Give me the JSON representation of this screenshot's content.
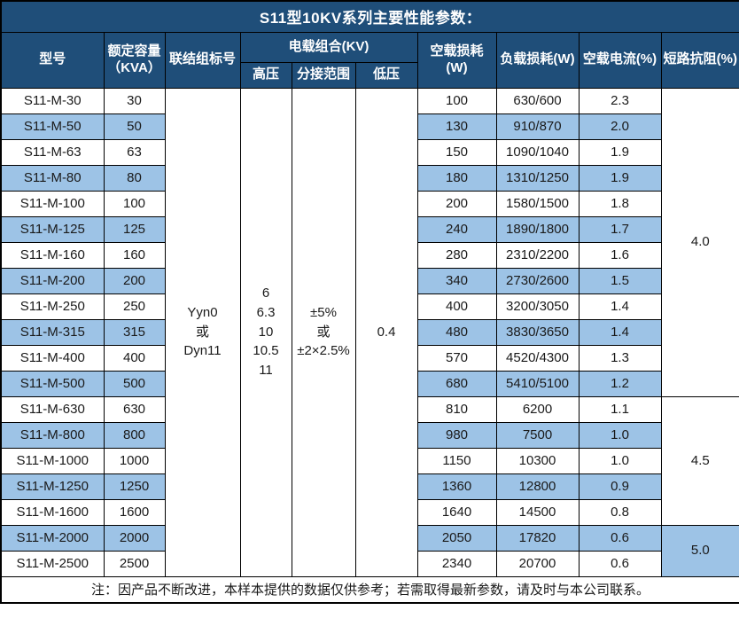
{
  "title": "S11型10KV系列主要性能参数：",
  "colors": {
    "header_bg": "#1F4E79",
    "row_alt": "#9DC3E6",
    "border": "#000000"
  },
  "table": {
    "headers": {
      "model": "型号",
      "capacity": "额定容量\n（KVA）",
      "vector_group": "联结组标号",
      "voltage_combo": "电载组合(KV)",
      "hv": "高压",
      "tap_range": "分接范围",
      "lv": "低压",
      "no_load_loss": "空载损耗(W)",
      "load_loss": "负载损耗(W)",
      "no_load_current": "空载电流(%)",
      "impedance": "短路抗阻(%)"
    },
    "merged": {
      "vector_group": "Yyn0\n或\nDyn11",
      "hv": "6\n6.3\n10\n10.5\n11",
      "tap_range": "±5%\n或\n±2×2.5%",
      "lv": "0.4"
    },
    "impedance_groups": [
      {
        "value": "4.0",
        "rows": 12
      },
      {
        "value": "4.5",
        "rows": 5
      },
      {
        "value": "5.0",
        "rows": 2
      }
    ],
    "rows": [
      {
        "model": "S11-M-30",
        "capacity": "30",
        "no_load_loss": "100",
        "load_loss": "630/600",
        "no_load_current": "2.3"
      },
      {
        "model": "S11-M-50",
        "capacity": "50",
        "no_load_loss": "130",
        "load_loss": "910/870",
        "no_load_current": "2.0"
      },
      {
        "model": "S11-M-63",
        "capacity": "63",
        "no_load_loss": "150",
        "load_loss": "1090/1040",
        "no_load_current": "1.9"
      },
      {
        "model": "S11-M-80",
        "capacity": "80",
        "no_load_loss": "180",
        "load_loss": "1310/1250",
        "no_load_current": "1.9"
      },
      {
        "model": "S11-M-100",
        "capacity": "100",
        "no_load_loss": "200",
        "load_loss": "1580/1500",
        "no_load_current": "1.8"
      },
      {
        "model": "S11-M-125",
        "capacity": "125",
        "no_load_loss": "240",
        "load_loss": "1890/1800",
        "no_load_current": "1.7"
      },
      {
        "model": "S11-M-160",
        "capacity": "160",
        "no_load_loss": "280",
        "load_loss": "2310/2200",
        "no_load_current": "1.6"
      },
      {
        "model": "S11-M-200",
        "capacity": "200",
        "no_load_loss": "340",
        "load_loss": "2730/2600",
        "no_load_current": "1.5"
      },
      {
        "model": "S11-M-250",
        "capacity": "250",
        "no_load_loss": "400",
        "load_loss": "3200/3050",
        "no_load_current": "1.4"
      },
      {
        "model": "S11-M-315",
        "capacity": "315",
        "no_load_loss": "480",
        "load_loss": "3830/3650",
        "no_load_current": "1.4"
      },
      {
        "model": "S11-M-400",
        "capacity": "400",
        "no_load_loss": "570",
        "load_loss": "4520/4300",
        "no_load_current": "1.3"
      },
      {
        "model": "S11-M-500",
        "capacity": "500",
        "no_load_loss": "680",
        "load_loss": "5410/5100",
        "no_load_current": "1.2"
      },
      {
        "model": "S11-M-630",
        "capacity": "630",
        "no_load_loss": "810",
        "load_loss": "6200",
        "no_load_current": "1.1"
      },
      {
        "model": "S11-M-800",
        "capacity": "800",
        "no_load_loss": "980",
        "load_loss": "7500",
        "no_load_current": "1.0"
      },
      {
        "model": "S11-M-1000",
        "capacity": "1000",
        "no_load_loss": "1150",
        "load_loss": "10300",
        "no_load_current": "1.0"
      },
      {
        "model": "S11-M-1250",
        "capacity": "1250",
        "no_load_loss": "1360",
        "load_loss": "12800",
        "no_load_current": "0.9"
      },
      {
        "model": "S11-M-1600",
        "capacity": "1600",
        "no_load_loss": "1640",
        "load_loss": "14500",
        "no_load_current": "0.8"
      },
      {
        "model": "S11-M-2000",
        "capacity": "2000",
        "no_load_loss": "2050",
        "load_loss": "17820",
        "no_load_current": "0.6"
      },
      {
        "model": "S11-M-2500",
        "capacity": "2500",
        "no_load_loss": "2340",
        "load_loss": "20700",
        "no_load_current": "0.6"
      }
    ]
  },
  "note": "注：因产品不断改进，本样本提供的数据仅供参考；若需取得最新参数，请及时与本公司联系。"
}
